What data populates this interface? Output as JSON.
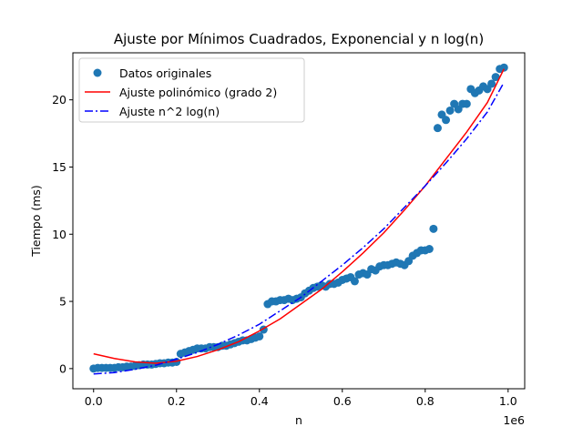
{
  "chart_data": {
    "type": "scatter",
    "title": "Ajuste por Mínimos Cuadrados, Exponencial y n log(n)",
    "xlabel": "n",
    "ylabel": "Tiempo (ms)",
    "x_offset_text": "1e6",
    "xlim": [
      -50000,
      1040000
    ],
    "ylim": [
      -1.5,
      23.5
    ],
    "x_ticks": [
      0,
      200000,
      400000,
      600000,
      800000,
      1000000
    ],
    "x_tick_labels": [
      "0.0",
      "0.2",
      "0.4",
      "0.6",
      "0.8",
      "1.0"
    ],
    "y_ticks": [
      0,
      5,
      10,
      15,
      20
    ],
    "y_tick_labels": [
      "0",
      "5",
      "10",
      "15",
      "20"
    ],
    "grid": false,
    "legend_position": "upper-left",
    "series": [
      {
        "name": "Datos originales",
        "kind": "scatter",
        "color": "#1f77b4",
        "points": [
          [
            0,
            0.0
          ],
          [
            10000,
            0.05
          ],
          [
            20000,
            0.05
          ],
          [
            30000,
            0.05
          ],
          [
            40000,
            0.05
          ],
          [
            50000,
            0.05
          ],
          [
            60000,
            0.1
          ],
          [
            70000,
            0.1
          ],
          [
            80000,
            0.15
          ],
          [
            90000,
            0.15
          ],
          [
            100000,
            0.2
          ],
          [
            110000,
            0.25
          ],
          [
            120000,
            0.3
          ],
          [
            130000,
            0.3
          ],
          [
            140000,
            0.3
          ],
          [
            150000,
            0.35
          ],
          [
            160000,
            0.4
          ],
          [
            170000,
            0.4
          ],
          [
            180000,
            0.45
          ],
          [
            190000,
            0.45
          ],
          [
            200000,
            0.5
          ],
          [
            210000,
            1.1
          ],
          [
            220000,
            1.2
          ],
          [
            230000,
            1.3
          ],
          [
            240000,
            1.4
          ],
          [
            250000,
            1.5
          ],
          [
            260000,
            1.5
          ],
          [
            270000,
            1.5
          ],
          [
            280000,
            1.6
          ],
          [
            290000,
            1.6
          ],
          [
            300000,
            1.6
          ],
          [
            310000,
            1.7
          ],
          [
            320000,
            1.7
          ],
          [
            330000,
            1.8
          ],
          [
            340000,
            1.9
          ],
          [
            350000,
            2.0
          ],
          [
            360000,
            2.1
          ],
          [
            370000,
            2.1
          ],
          [
            380000,
            2.2
          ],
          [
            390000,
            2.3
          ],
          [
            400000,
            2.4
          ],
          [
            410000,
            2.9
          ],
          [
            420000,
            4.8
          ],
          [
            430000,
            5.0
          ],
          [
            440000,
            5.0
          ],
          [
            450000,
            5.1
          ],
          [
            460000,
            5.1
          ],
          [
            470000,
            5.2
          ],
          [
            480000,
            5.1
          ],
          [
            490000,
            5.2
          ],
          [
            500000,
            5.3
          ],
          [
            510000,
            5.6
          ],
          [
            520000,
            5.8
          ],
          [
            530000,
            6.0
          ],
          [
            540000,
            6.1
          ],
          [
            550000,
            6.2
          ],
          [
            560000,
            6.1
          ],
          [
            570000,
            6.3
          ],
          [
            580000,
            6.3
          ],
          [
            590000,
            6.4
          ],
          [
            600000,
            6.6
          ],
          [
            610000,
            6.7
          ],
          [
            620000,
            6.8
          ],
          [
            630000,
            6.5
          ],
          [
            640000,
            7.0
          ],
          [
            650000,
            7.1
          ],
          [
            660000,
            7.0
          ],
          [
            670000,
            7.4
          ],
          [
            680000,
            7.3
          ],
          [
            690000,
            7.6
          ],
          [
            700000,
            7.7
          ],
          [
            710000,
            7.7
          ],
          [
            720000,
            7.8
          ],
          [
            730000,
            7.9
          ],
          [
            740000,
            7.8
          ],
          [
            750000,
            7.7
          ],
          [
            760000,
            8.0
          ],
          [
            770000,
            8.4
          ],
          [
            780000,
            8.6
          ],
          [
            790000,
            8.8
          ],
          [
            800000,
            8.8
          ],
          [
            810000,
            8.9
          ],
          [
            820000,
            10.4
          ],
          [
            830000,
            17.9
          ],
          [
            840000,
            18.9
          ],
          [
            850000,
            18.5
          ],
          [
            860000,
            19.2
          ],
          [
            870000,
            19.7
          ],
          [
            880000,
            19.3
          ],
          [
            890000,
            19.7
          ],
          [
            900000,
            19.7
          ],
          [
            910000,
            20.8
          ],
          [
            920000,
            20.5
          ],
          [
            930000,
            20.7
          ],
          [
            940000,
            21.0
          ],
          [
            950000,
            20.8
          ],
          [
            960000,
            21.2
          ],
          [
            970000,
            21.7
          ],
          [
            980000,
            22.3
          ],
          [
            990000,
            22.4
          ]
        ]
      },
      {
        "name": "Ajuste polinómico (grado 2)",
        "kind": "line",
        "style": "solid",
        "color": "#ff0000",
        "points": [
          [
            0,
            1.1
          ],
          [
            50000,
            0.75
          ],
          [
            100000,
            0.5
          ],
          [
            150000,
            0.4
          ],
          [
            200000,
            0.55
          ],
          [
            250000,
            0.9
          ],
          [
            300000,
            1.4
          ],
          [
            350000,
            2.0
          ],
          [
            400000,
            2.8
          ],
          [
            450000,
            3.7
          ],
          [
            500000,
            4.8
          ],
          [
            550000,
            5.9
          ],
          [
            600000,
            7.2
          ],
          [
            650000,
            8.6
          ],
          [
            700000,
            10.1
          ],
          [
            750000,
            11.8
          ],
          [
            800000,
            13.6
          ],
          [
            850000,
            15.6
          ],
          [
            900000,
            17.6
          ],
          [
            950000,
            19.8
          ],
          [
            990000,
            22.3
          ]
        ]
      },
      {
        "name": "Ajuste n^2 log(n)",
        "kind": "line",
        "style": "dashdot",
        "color": "#0000ff",
        "points": [
          [
            0,
            -0.4
          ],
          [
            50000,
            -0.3
          ],
          [
            100000,
            -0.05
          ],
          [
            150000,
            0.25
          ],
          [
            200000,
            0.7
          ],
          [
            250000,
            1.2
          ],
          [
            300000,
            1.8
          ],
          [
            350000,
            2.5
          ],
          [
            400000,
            3.3
          ],
          [
            450000,
            4.3
          ],
          [
            500000,
            5.3
          ],
          [
            550000,
            6.5
          ],
          [
            600000,
            7.7
          ],
          [
            650000,
            9.0
          ],
          [
            700000,
            10.4
          ],
          [
            750000,
            12.0
          ],
          [
            800000,
            13.6
          ],
          [
            850000,
            15.3
          ],
          [
            900000,
            17.1
          ],
          [
            950000,
            19.1
          ],
          [
            990000,
            21.3
          ]
        ]
      }
    ]
  }
}
